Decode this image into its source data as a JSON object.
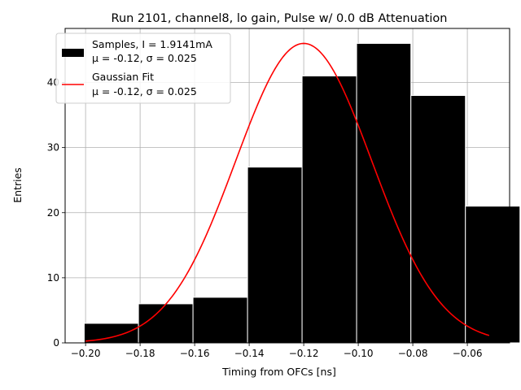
{
  "chart_data": {
    "type": "bar",
    "title": "Run 2101, channel8, lo gain, Pulse w/ 0.0 dB Attenuation",
    "xlabel": "Timing from OFCs [ns]",
    "ylabel": "Entries",
    "xlim": [
      -0.2075,
      -0.0445
    ],
    "ylim": [
      0,
      48.3
    ],
    "xticks": [
      -0.2,
      -0.18,
      -0.16,
      -0.14,
      -0.12,
      -0.1,
      -0.08,
      -0.06
    ],
    "xtick_labels": [
      "−0.20",
      "−0.18",
      "−0.16",
      "−0.14",
      "−0.12",
      "−0.10",
      "−0.08",
      "−0.06"
    ],
    "yticks": [
      0,
      10,
      20,
      30,
      40
    ],
    "ytick_labels": [
      "0",
      "10",
      "20",
      "30",
      "40"
    ],
    "grid": true,
    "legend_position": "top-left",
    "histogram": {
      "name": "Samples, I = 1.9141mA",
      "stats": "μ = -0.12, σ = 0.025",
      "color": "#000000",
      "edgecolor": "#ffffff",
      "bins": [
        {
          "left": -0.2005,
          "right": -0.1806,
          "count": 3
        },
        {
          "left": -0.1806,
          "right": -0.1606,
          "count": 6
        },
        {
          "left": -0.1606,
          "right": -0.1406,
          "count": 7
        },
        {
          "left": -0.1406,
          "right": -0.1206,
          "count": 27
        },
        {
          "left": -0.1206,
          "right": -0.1006,
          "count": 41
        },
        {
          "left": -0.1006,
          "right": -0.0807,
          "count": 46
        },
        {
          "left": -0.0807,
          "right": -0.0607,
          "count": 38
        },
        {
          "left": -0.0607,
          "right": -0.0407,
          "count": 21
        }
      ]
    },
    "fit": {
      "name": "Gaussian Fit",
      "stats": "μ = -0.12, σ = 0.025",
      "color": "#ff0000",
      "amplitude": 46.0,
      "mean": -0.12,
      "sigma": 0.025,
      "x_range": [
        -0.2,
        -0.052
      ]
    }
  }
}
